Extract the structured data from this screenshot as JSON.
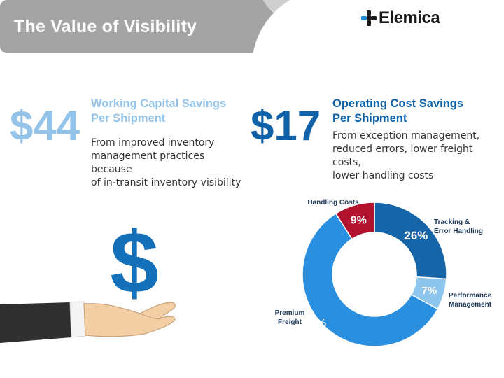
{
  "header": {
    "title": "The Value of Visibility"
  },
  "logo": {
    "text": "Elemica"
  },
  "stats": [
    {
      "value": "$44",
      "title_line1": "Working Capital Savings",
      "title_line2": "Per Shipment",
      "desc_lines": [
        "From improved inventory",
        "management practices because",
        "of in-transit inventory visibility"
      ]
    },
    {
      "value": "$17",
      "title_line1": "Operating Cost Savings",
      "title_line2": "Per Shipment",
      "desc_lines": [
        "From exception management,",
        "reduced errors, lower freight costs,",
        "lower handling costs"
      ]
    }
  ],
  "illustration": {
    "symbol": "$"
  },
  "chart_data": {
    "type": "pie",
    "title": "",
    "slices": [
      {
        "name": "Tracking & Error Handling",
        "label_lines": [
          "Tracking &",
          "Error Handling"
        ],
        "value": 26,
        "value_label": "26%",
        "color": "#1565a8"
      },
      {
        "name": "Performance Management",
        "label_lines": [
          "Performance",
          "Management"
        ],
        "value": 7,
        "value_label": "7%",
        "color": "#8ec5ec"
      },
      {
        "name": "Premium Freight",
        "label_lines": [
          "Premium",
          "Freight"
        ],
        "value": 58,
        "value_label": "58%",
        "color": "#2b8fe0"
      },
      {
        "name": "Handling Costs",
        "label_lines": [
          "Handling Costs"
        ],
        "value": 9,
        "value_label": "9%",
        "color": "#b1132e"
      }
    ],
    "legend": "none"
  }
}
